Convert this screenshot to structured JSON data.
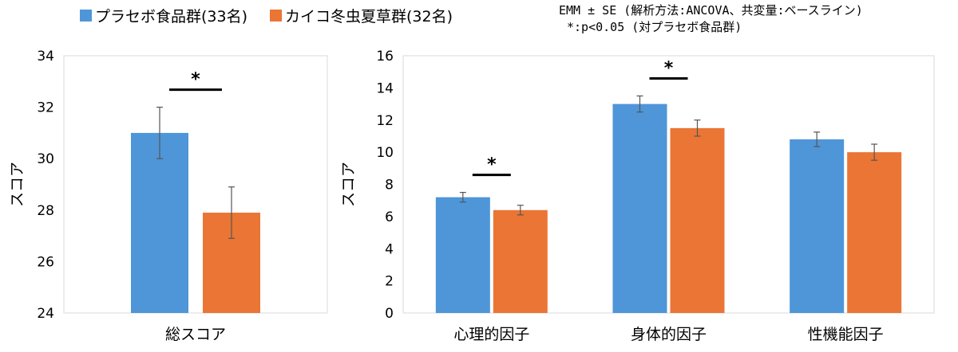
{
  "legend": [
    {
      "label": "プラセボ食品群(33名)",
      "color": "#4e96d8"
    },
    {
      "label": "カイコ冬虫夏草群(32名)",
      "color": "#ea7535"
    }
  ],
  "note": {
    "line1": "EMM ± SE (解析方法:ANCOVA、共変量:ベースライン)",
    "line2": "*:p<0.05 (対プラセボ食品群)"
  },
  "chart_data": [
    {
      "type": "bar",
      "categories": [
        "総スコア"
      ],
      "series": [
        {
          "name": "プラセボ食品群(33名)",
          "values": [
            31.0
          ],
          "errors": [
            1.0
          ],
          "color": "#4e96d8"
        },
        {
          "name": "カイコ冬虫夏草群(32名)",
          "values": [
            27.9
          ],
          "errors": [
            1.0
          ],
          "color": "#ea7535"
        }
      ],
      "ylabel": "スコア",
      "ylim": [
        24,
        34
      ],
      "yticks": [
        24,
        26,
        28,
        30,
        32,
        34
      ],
      "significance": [
        {
          "category": 0,
          "label": "*"
        }
      ]
    },
    {
      "type": "bar",
      "categories": [
        "心理的因子",
        "身体的因子",
        "性機能因子"
      ],
      "series": [
        {
          "name": "プラセボ食品群(33名)",
          "values": [
            7.2,
            13.0,
            10.8
          ],
          "errors": [
            0.3,
            0.5,
            0.45
          ],
          "color": "#4e96d8"
        },
        {
          "name": "カイコ冬虫夏草群(32名)",
          "values": [
            6.4,
            11.5,
            10.0
          ],
          "errors": [
            0.3,
            0.5,
            0.5
          ],
          "color": "#ea7535"
        }
      ],
      "ylabel": "スコア",
      "ylim": [
        0,
        16
      ],
      "yticks": [
        0,
        2,
        4,
        6,
        8,
        10,
        12,
        14,
        16
      ],
      "significance": [
        {
          "category": 0,
          "label": "*"
        },
        {
          "category": 1,
          "label": "*"
        }
      ]
    }
  ]
}
